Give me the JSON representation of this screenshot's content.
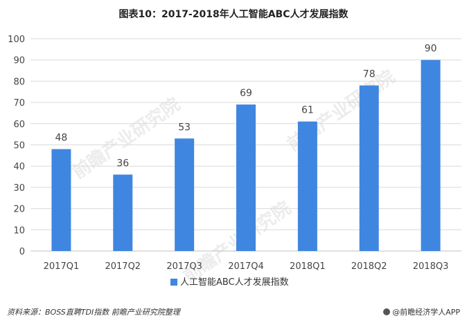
{
  "title": "图表10：2017-2018年人工智能ABC人才发展指数",
  "source": "资料来源：BOSS直聘TDI指数 前瞻产业研究院整理",
  "brand": "@前瞻经济学人APP",
  "watermark": "前瞻产业研究院",
  "chart_data": {
    "type": "bar",
    "categories": [
      "2017Q1",
      "2017Q2",
      "2017Q3",
      "2017Q4",
      "2018Q1",
      "2018Q2",
      "2018Q3"
    ],
    "series": [
      {
        "name": "人工智能ABC人才发展指数",
        "values": [
          48,
          36,
          53,
          69,
          61,
          78,
          90
        ],
        "color": "#3F86E0"
      }
    ],
    "ylim": [
      0,
      100
    ],
    "yticks": [
      0,
      10,
      20,
      30,
      40,
      50,
      60,
      70,
      80,
      90,
      100
    ],
    "grid": true,
    "legend": "bottom-center",
    "data_labels": true
  }
}
